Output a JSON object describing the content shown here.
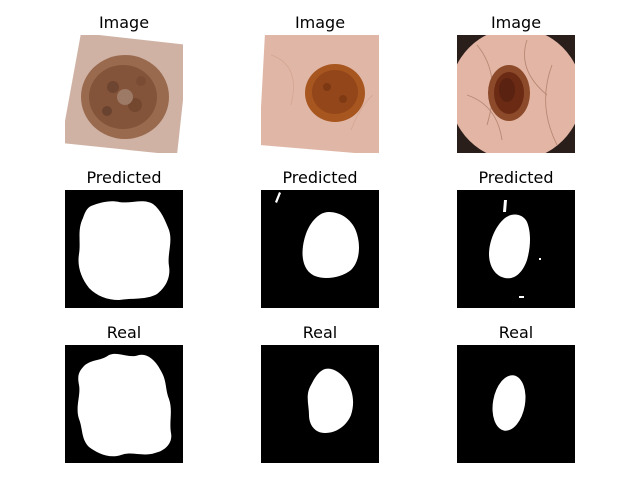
{
  "columns": 3,
  "row_titles": {
    "image": "Image",
    "predicted": "Predicted",
    "real": "Real"
  },
  "colors": {
    "background": "#ffffff",
    "mask_background": "#000000",
    "mask_foreground": "#ffffff",
    "skin_1": "#d2b4a8",
    "skin_2": "#e2b7a8",
    "skin_3": "#e4b7a6",
    "lesion_1": "#8a5a3e",
    "lesion_2": "#a5541f",
    "lesion_3": "#6b2a14"
  }
}
